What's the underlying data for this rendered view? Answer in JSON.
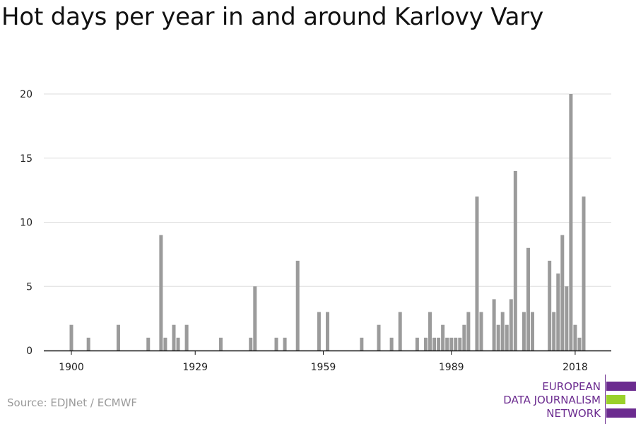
{
  "title": "Hot days per year in and around Karlovy Vary",
  "source": "Source: EDJNet / ECMWF",
  "logo": {
    "lines": [
      "EUROPEAN",
      "DATA JOURNALISM",
      "NETWORK"
    ],
    "colors": {
      "purple": "#6b2b8f",
      "green": "#9ad12a"
    }
  },
  "chart_data": {
    "type": "bar",
    "title": "Hot days per year in and around Karlovy Vary",
    "xlabel": "",
    "ylabel": "",
    "xlim": [
      1900,
      2019
    ],
    "ylim": [
      0,
      20
    ],
    "yticks": [
      0,
      5,
      10,
      15,
      20
    ],
    "xticks": [
      1900,
      1929,
      1959,
      1989,
      2018
    ],
    "grid": true,
    "bar_color": "#9b9b9b",
    "points": [
      {
        "x": 1900,
        "y": 2
      },
      {
        "x": 1904,
        "y": 1
      },
      {
        "x": 1911,
        "y": 2
      },
      {
        "x": 1918,
        "y": 1
      },
      {
        "x": 1921,
        "y": 9
      },
      {
        "x": 1922,
        "y": 1
      },
      {
        "x": 1924,
        "y": 2
      },
      {
        "x": 1925,
        "y": 1
      },
      {
        "x": 1927,
        "y": 2
      },
      {
        "x": 1935,
        "y": 1
      },
      {
        "x": 1942,
        "y": 1
      },
      {
        "x": 1943,
        "y": 5
      },
      {
        "x": 1948,
        "y": 1
      },
      {
        "x": 1950,
        "y": 1
      },
      {
        "x": 1953,
        "y": 7
      },
      {
        "x": 1958,
        "y": 3
      },
      {
        "x": 1960,
        "y": 3
      },
      {
        "x": 1968,
        "y": 1
      },
      {
        "x": 1972,
        "y": 2
      },
      {
        "x": 1975,
        "y": 1
      },
      {
        "x": 1977,
        "y": 3
      },
      {
        "x": 1981,
        "y": 1
      },
      {
        "x": 1983,
        "y": 1
      },
      {
        "x": 1984,
        "y": 3
      },
      {
        "x": 1985,
        "y": 1
      },
      {
        "x": 1986,
        "y": 1
      },
      {
        "x": 1987,
        "y": 2
      },
      {
        "x": 1988,
        "y": 1
      },
      {
        "x": 1989,
        "y": 1
      },
      {
        "x": 1990,
        "y": 1
      },
      {
        "x": 1991,
        "y": 1
      },
      {
        "x": 1992,
        "y": 2
      },
      {
        "x": 1993,
        "y": 3
      },
      {
        "x": 1995,
        "y": 12
      },
      {
        "x": 1996,
        "y": 3
      },
      {
        "x": 1999,
        "y": 4
      },
      {
        "x": 2000,
        "y": 2
      },
      {
        "x": 2001,
        "y": 3
      },
      {
        "x": 2002,
        "y": 2
      },
      {
        "x": 2003,
        "y": 4
      },
      {
        "x": 2004,
        "y": 14
      },
      {
        "x": 2006,
        "y": 3
      },
      {
        "x": 2007,
        "y": 8
      },
      {
        "x": 2008,
        "y": 3
      },
      {
        "x": 2012,
        "y": 7
      },
      {
        "x": 2013,
        "y": 3
      },
      {
        "x": 2014,
        "y": 6
      },
      {
        "x": 2015,
        "y": 9
      },
      {
        "x": 2016,
        "y": 5
      },
      {
        "x": 2017,
        "y": 20
      },
      {
        "x": 2018,
        "y": 2
      },
      {
        "x": 2019,
        "y": 1
      },
      {
        "x": 2020,
        "y": 12
      }
    ]
  }
}
